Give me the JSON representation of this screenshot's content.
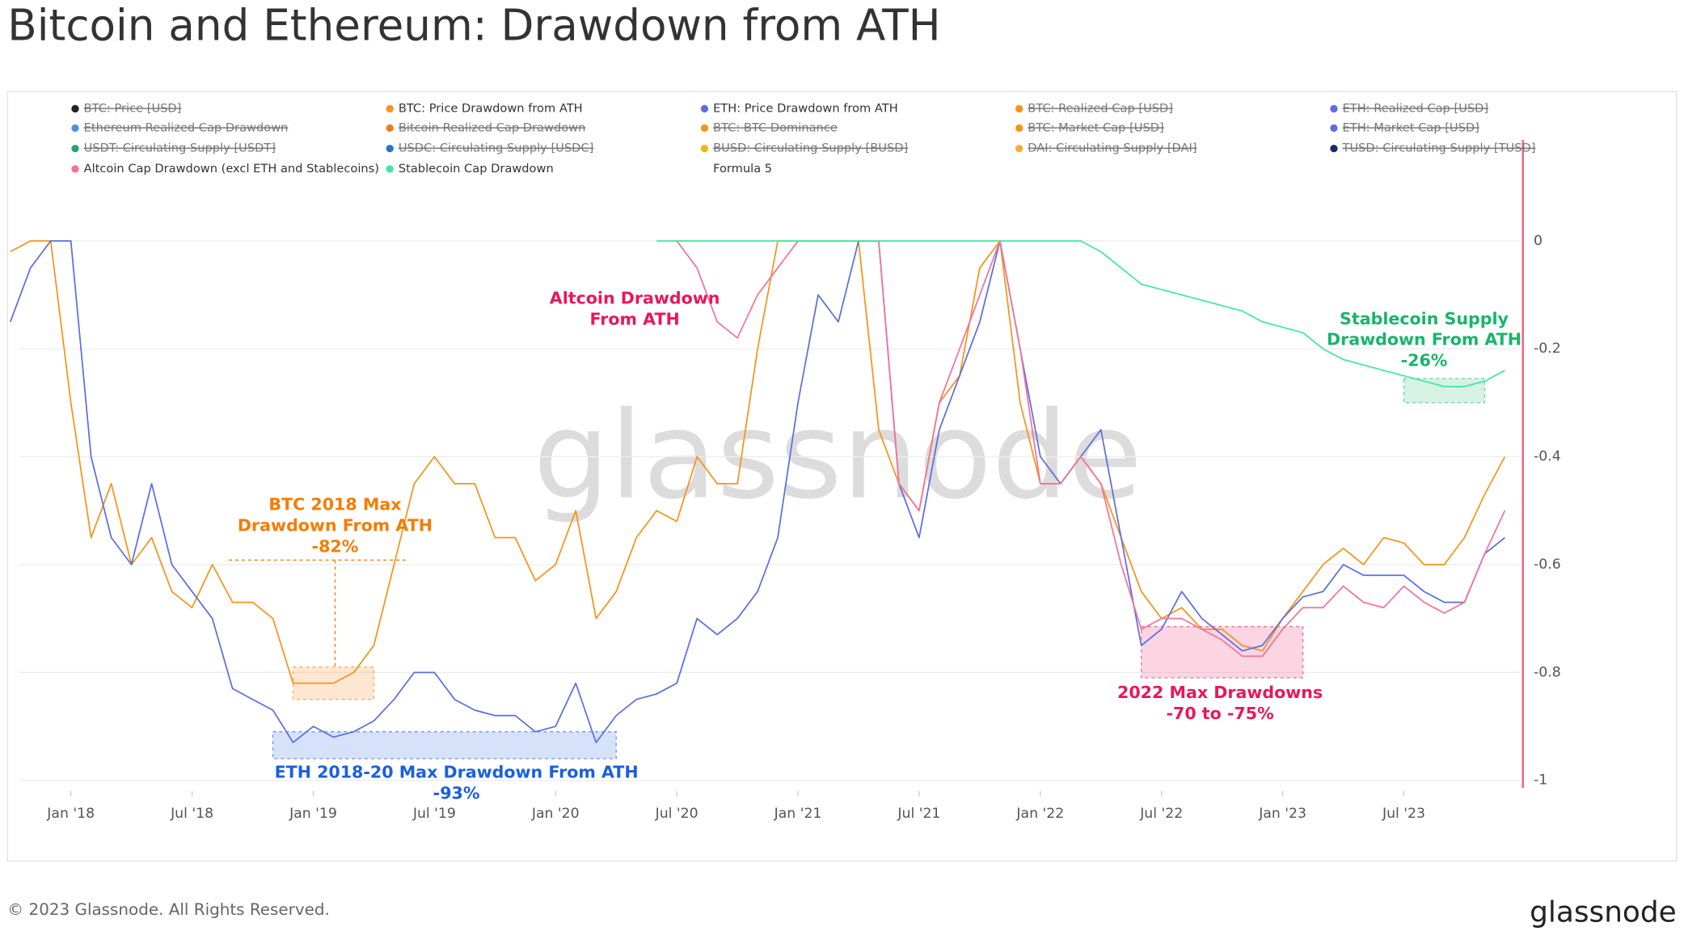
{
  "chart_data": {
    "type": "line",
    "title": "Bitcoin and Ethereum: Drawdown from ATH",
    "footer": "© 2023 Glassnode. All Rights Reserved.",
    "logo": "glassnode",
    "watermark": "glassnode",
    "x": [
      "2017-10",
      "2017-11",
      "2017-12",
      "2018-01",
      "2018-02",
      "2018-03",
      "2018-04",
      "2018-05",
      "2018-06",
      "2018-07",
      "2018-08",
      "2018-09",
      "2018-10",
      "2018-11",
      "2018-12",
      "2019-01",
      "2019-02",
      "2019-03",
      "2019-04",
      "2019-05",
      "2019-06",
      "2019-07",
      "2019-08",
      "2019-09",
      "2019-10",
      "2019-11",
      "2019-12",
      "2020-01",
      "2020-02",
      "2020-03",
      "2020-04",
      "2020-05",
      "2020-06",
      "2020-07",
      "2020-08",
      "2020-09",
      "2020-10",
      "2020-11",
      "2020-12",
      "2021-01",
      "2021-02",
      "2021-03",
      "2021-04",
      "2021-05",
      "2021-06",
      "2021-07",
      "2021-08",
      "2021-09",
      "2021-10",
      "2021-11",
      "2021-12",
      "2022-01",
      "2022-02",
      "2022-03",
      "2022-04",
      "2022-05",
      "2022-06",
      "2022-07",
      "2022-08",
      "2022-09",
      "2022-10",
      "2022-11",
      "2022-12",
      "2023-01",
      "2023-02",
      "2023-03",
      "2023-04",
      "2023-05",
      "2023-06",
      "2023-07",
      "2023-08",
      "2023-09",
      "2023-10",
      "2023-11",
      "2023-12"
    ],
    "xlim": [
      "2017-10",
      "2024-01"
    ],
    "xticks": [
      {
        "value": "2018-01",
        "label": "Jan '18"
      },
      {
        "value": "2018-07",
        "label": "Jul '18"
      },
      {
        "value": "2019-01",
        "label": "Jan '19"
      },
      {
        "value": "2019-07",
        "label": "Jul '19"
      },
      {
        "value": "2020-01",
        "label": "Jan '20"
      },
      {
        "value": "2020-07",
        "label": "Jul '20"
      },
      {
        "value": "2021-01",
        "label": "Jan '21"
      },
      {
        "value": "2021-07",
        "label": "Jul '21"
      },
      {
        "value": "2022-01",
        "label": "Jan '22"
      },
      {
        "value": "2022-07",
        "label": "Jul '22"
      },
      {
        "value": "2023-01",
        "label": "Jan '23"
      },
      {
        "value": "2023-07",
        "label": "Jul '23"
      }
    ],
    "ylim": [
      -1.02,
      0.2
    ],
    "yticks": [
      0,
      -0.2,
      -0.4,
      -0.6,
      -0.8,
      -1
    ],
    "grid": true,
    "series": [
      {
        "name": "BTC: Price [USD]",
        "color": "#222222",
        "visible": false
      },
      {
        "name": "BTC: Price Drawdown from ATH",
        "color": "#f7931a",
        "values": [
          -0.02,
          0,
          0,
          -0.3,
          -0.55,
          -0.45,
          -0.6,
          -0.55,
          -0.65,
          -0.68,
          -0.6,
          -0.67,
          -0.67,
          -0.7,
          -0.82,
          -0.82,
          -0.82,
          -0.8,
          -0.75,
          -0.6,
          -0.45,
          -0.4,
          -0.45,
          -0.45,
          -0.55,
          -0.55,
          -0.63,
          -0.6,
          -0.5,
          -0.7,
          -0.65,
          -0.55,
          -0.5,
          -0.52,
          -0.4,
          -0.45,
          -0.45,
          -0.2,
          0,
          0,
          0,
          0,
          0,
          -0.35,
          -0.45,
          -0.5,
          -0.3,
          -0.25,
          -0.05,
          0,
          -0.3,
          -0.45,
          -0.45,
          -0.4,
          -0.45,
          -0.55,
          -0.65,
          -0.7,
          -0.68,
          -0.72,
          -0.72,
          -0.75,
          -0.76,
          -0.7,
          -0.65,
          -0.6,
          -0.57,
          -0.6,
          -0.55,
          -0.56,
          -0.6,
          -0.6,
          -0.55,
          -0.47,
          -0.4
        ]
      },
      {
        "name": "ETH: Price Drawdown from ATH",
        "color": "#5b6ee1",
        "values": [
          -0.15,
          -0.05,
          0,
          0,
          -0.4,
          -0.55,
          -0.6,
          -0.45,
          -0.6,
          -0.65,
          -0.7,
          -0.83,
          -0.85,
          -0.87,
          -0.93,
          -0.9,
          -0.92,
          -0.91,
          -0.89,
          -0.85,
          -0.8,
          -0.8,
          -0.85,
          -0.87,
          -0.88,
          -0.88,
          -0.91,
          -0.9,
          -0.82,
          -0.93,
          -0.88,
          -0.85,
          -0.84,
          -0.82,
          -0.7,
          -0.73,
          -0.7,
          -0.65,
          -0.55,
          -0.3,
          -0.1,
          -0.15,
          0,
          0,
          -0.45,
          -0.55,
          -0.35,
          -0.25,
          -0.15,
          0,
          -0.2,
          -0.4,
          -0.45,
          -0.4,
          -0.35,
          -0.55,
          -0.75,
          -0.72,
          -0.65,
          -0.7,
          -0.73,
          -0.76,
          -0.75,
          -0.7,
          -0.66,
          -0.65,
          -0.6,
          -0.62,
          -0.62,
          -0.62,
          -0.65,
          -0.67,
          -0.67,
          -0.58,
          -0.55
        ]
      },
      {
        "name": "BTC: Realized Cap [USD]",
        "color": "#f7931a",
        "visible": false
      },
      {
        "name": "ETH: Realized Cap [USD]",
        "color": "#5b6ee1",
        "visible": false
      },
      {
        "name": "Ethereum Realized Cap Drawdown",
        "color": "#4a8fe7",
        "visible": false
      },
      {
        "name": "Bitcoin Realized Cap Drawdown",
        "color": "#f07d1a",
        "visible": false
      },
      {
        "name": "BTC: BTC Dominance",
        "color": "#f7931a",
        "visible": false
      },
      {
        "name": "BTC: Market Cap [USD]",
        "color": "#f7931a",
        "visible": false
      },
      {
        "name": "ETH: Market Cap [USD]",
        "color": "#5b6ee1",
        "visible": false
      },
      {
        "name": "USDT: Circulating Supply [USDT]",
        "color": "#26a17b",
        "visible": false
      },
      {
        "name": "USDC: Circulating Supply [USDC]",
        "color": "#2775ca",
        "visible": false
      },
      {
        "name": "BUSD: Circulating Supply [BUSD]",
        "color": "#f0b90b",
        "visible": false
      },
      {
        "name": "DAI: Circulating Supply [DAI]",
        "color": "#f5ac37",
        "visible": false
      },
      {
        "name": "TUSD: Circulating Supply [TUSD]",
        "color": "#1a2a6c",
        "visible": false
      },
      {
        "name": "Altcoin Cap Drawdown (excl ETH and Stablecoins)",
        "color": "#f5719b",
        "values": [
          null,
          null,
          null,
          null,
          null,
          null,
          null,
          null,
          null,
          null,
          null,
          null,
          null,
          null,
          null,
          null,
          null,
          null,
          null,
          null,
          null,
          null,
          null,
          null,
          null,
          null,
          null,
          null,
          null,
          null,
          null,
          null,
          null,
          0,
          -0.05,
          -0.15,
          -0.18,
          -0.1,
          -0.05,
          0,
          0,
          0,
          0,
          0,
          -0.45,
          -0.5,
          -0.3,
          -0.2,
          -0.1,
          0,
          -0.2,
          -0.45,
          -0.45,
          -0.4,
          -0.45,
          -0.6,
          -0.72,
          -0.7,
          -0.7,
          -0.72,
          -0.74,
          -0.77,
          -0.77,
          -0.72,
          -0.68,
          -0.68,
          -0.64,
          -0.67,
          -0.68,
          -0.64,
          -0.67,
          -0.69,
          -0.67,
          -0.58,
          -0.5
        ]
      },
      {
        "name": "Stablecoin Cap Drawdown",
        "color": "#3ee8a0",
        "values": [
          null,
          null,
          null,
          null,
          null,
          null,
          null,
          null,
          null,
          null,
          null,
          null,
          null,
          null,
          null,
          null,
          null,
          null,
          null,
          null,
          null,
          null,
          null,
          null,
          null,
          null,
          null,
          null,
          null,
          null,
          null,
          null,
          0,
          0,
          0,
          0,
          0,
          0,
          0,
          0,
          0,
          0,
          0,
          0,
          0,
          0,
          0,
          0,
          0,
          0,
          0,
          0,
          0,
          0,
          -0.02,
          -0.05,
          -0.08,
          -0.09,
          -0.1,
          -0.11,
          -0.12,
          -0.13,
          -0.15,
          -0.16,
          -0.17,
          -0.2,
          -0.22,
          -0.23,
          -0.24,
          -0.25,
          -0.26,
          -0.27,
          -0.27,
          -0.26,
          -0.24
        ]
      },
      {
        "name": "Formula 5"
      }
    ],
    "annotations": [
      {
        "lines": [
          "BTC 2018 Max",
          "Drawdown From ATH",
          "-82%"
        ],
        "color": "#f57c00",
        "x0": "2018-12",
        "x1": "2019-04",
        "y0": -0.79,
        "y1": -0.85
      },
      {
        "lines": [
          "ETH 2018-20 Max Drawdown From ATH",
          "-93%"
        ],
        "color": "#1a5fe0",
        "x0": "2018-11",
        "x1": "2020-04",
        "y0": -0.91,
        "y1": -0.96
      },
      {
        "lines": [
          "Altcoin Drawdown",
          "From ATH"
        ],
        "color": "#e8175d"
      },
      {
        "lines": [
          "2022 Max Drawdowns",
          "-70 to -75%"
        ],
        "color": "#e8175d",
        "x0": "2022-06",
        "x1": "2023-02",
        "y0": -0.715,
        "y1": -0.81
      },
      {
        "lines": [
          "Stablecoin Supply",
          "Drawdown From ATH",
          "-26%"
        ],
        "color": "#18b56a",
        "x0": "2023-07",
        "x1": "2023-11",
        "y0": -0.255,
        "y1": -0.3
      }
    ]
  }
}
